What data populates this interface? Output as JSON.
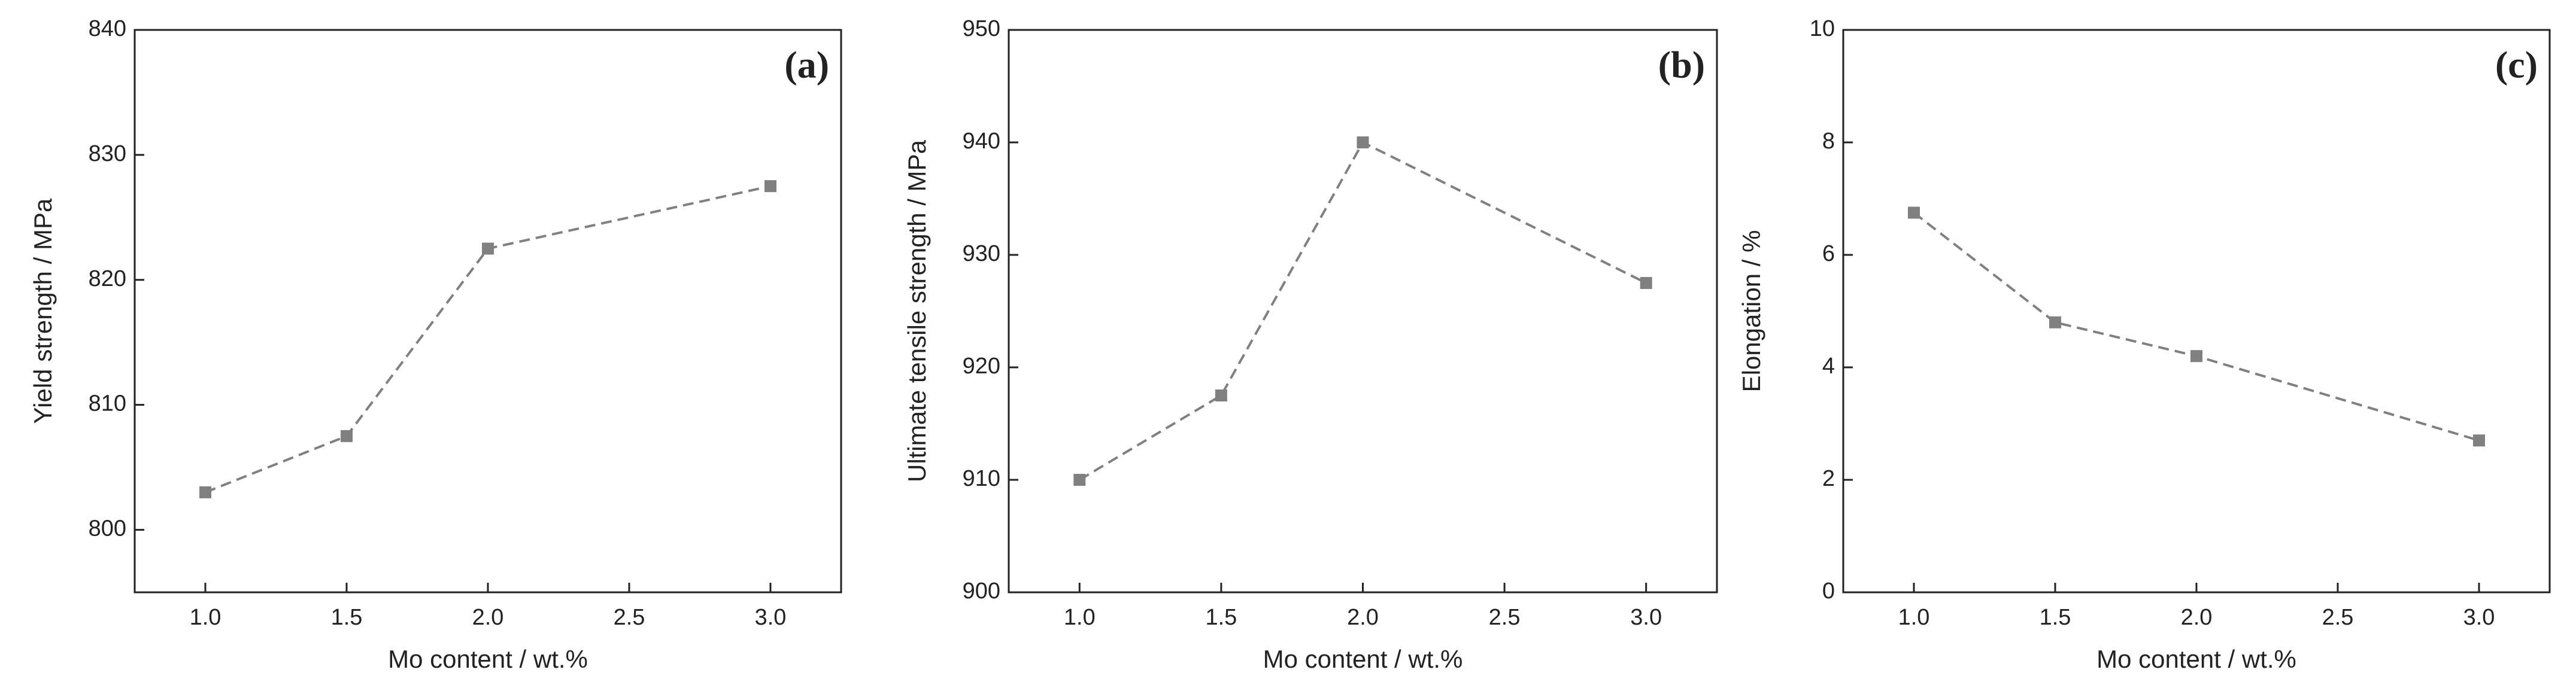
{
  "chart_data": [
    {
      "type": "line",
      "title": "(a)",
      "x_label": "Mo content / wt.%",
      "y_label": "Yield strength / MPa",
      "x": [
        1.0,
        1.5,
        2.0,
        3.0
      ],
      "series": [
        {
          "color": "#808080",
          "values": [
            803,
            807.5,
            822.5,
            827.5
          ]
        }
      ],
      "xlim": [
        0.75,
        3.25
      ],
      "xticks": [
        {
          "value": 1,
          "label": "1.0"
        },
        1.5,
        {
          "value": 2,
          "label": "2.0"
        },
        2.5,
        {
          "value": 3,
          "label": "3.0"
        }
      ],
      "ylim": [
        795,
        840
      ],
      "yticks": [
        800,
        810,
        820,
        830,
        840
      ]
    },
    {
      "type": "line",
      "title": "(b)",
      "x_label": "Mo content / wt.%",
      "y_label": "Ultimate tensile strength / MPa",
      "x": [
        1.0,
        1.5,
        2.0,
        3.0
      ],
      "series": [
        {
          "color": "#808080",
          "values": [
            910,
            917.5,
            940,
            927.5
          ]
        }
      ],
      "xlim": [
        0.75,
        3.25
      ],
      "xticks": [
        {
          "value": 1,
          "label": "1.0"
        },
        1.5,
        {
          "value": 2,
          "label": "2.0"
        },
        2.5,
        {
          "value": 3,
          "label": "3.0"
        }
      ],
      "ylim": [
        900,
        950
      ],
      "yticks": [
        900,
        910,
        920,
        930,
        940,
        950
      ]
    },
    {
      "type": "line",
      "title": "(c)",
      "x_label": "Mo content / wt.%",
      "y_label": "Elongation / %",
      "x": [
        1.0,
        1.5,
        2.0,
        3.0
      ],
      "series": [
        {
          "color": "#808080",
          "values": [
            6.75,
            4.8,
            4.2,
            2.7
          ]
        }
      ],
      "xlim": [
        0.75,
        3.25
      ],
      "xticks": [
        {
          "value": 1,
          "label": "1.0"
        },
        1.5,
        {
          "value": 2,
          "label": "2.0"
        },
        2.5,
        {
          "value": 3,
          "label": "3.0"
        }
      ],
      "ylim": [
        0,
        10
      ],
      "yticks": [
        0,
        2,
        4,
        6,
        8,
        10
      ]
    }
  ]
}
